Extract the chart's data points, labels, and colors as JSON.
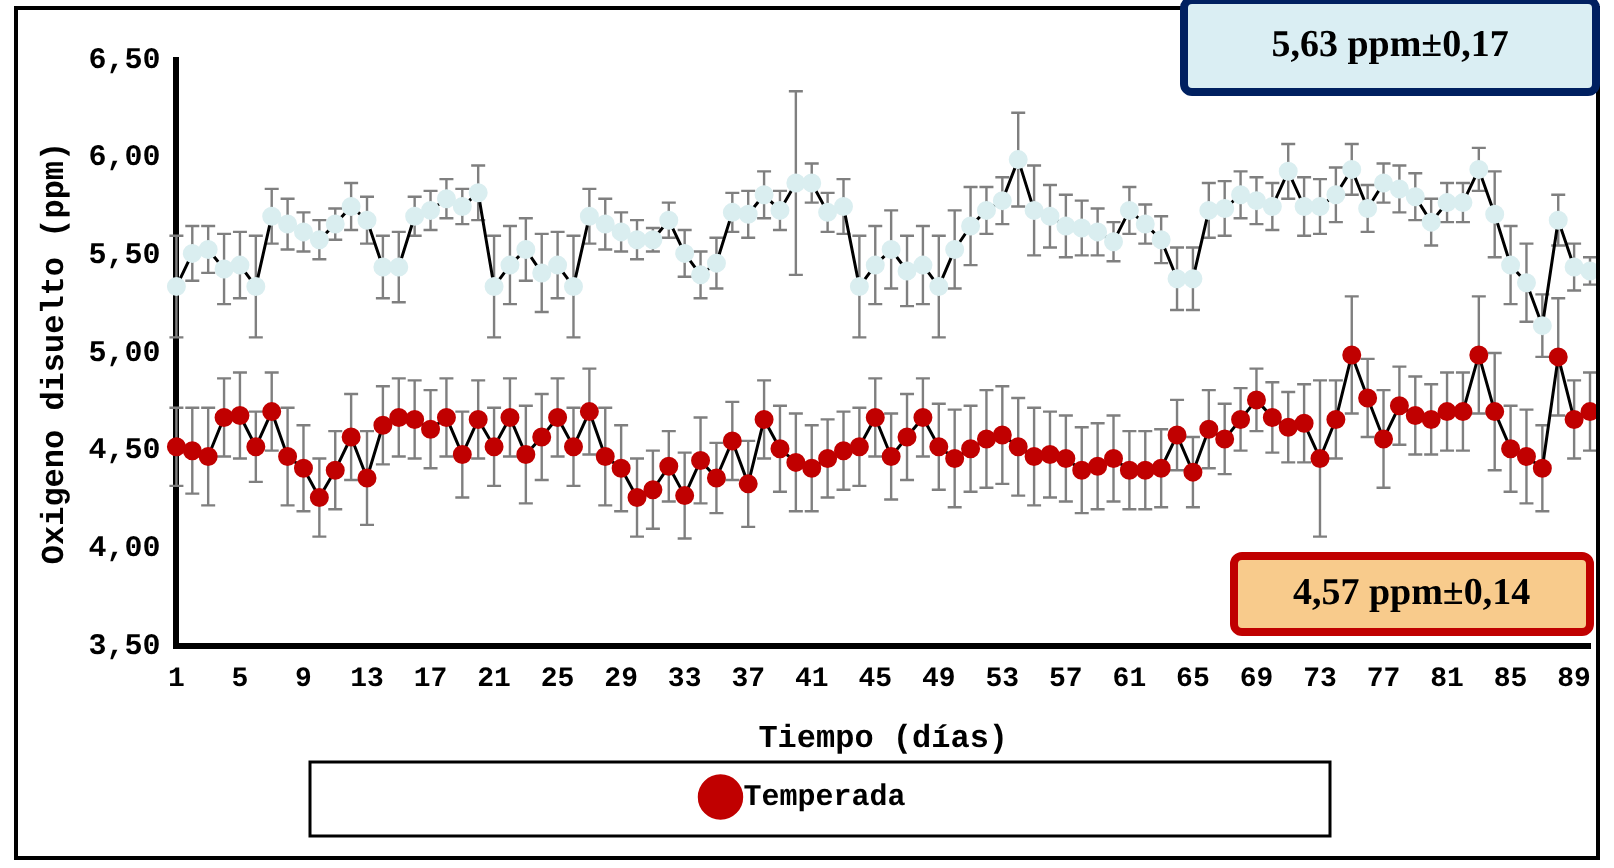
{
  "chart_data": {
    "type": "line",
    "xlabel": "Tiempo (días)",
    "ylabel": "Oxigeno disuelto (ppm)",
    "categories": [
      "1",
      null,
      null,
      null,
      "5",
      null,
      null,
      null,
      "9",
      null,
      null,
      null,
      "13",
      null,
      null,
      null,
      "17",
      null,
      null,
      null,
      "21",
      null,
      null,
      null,
      "25",
      null,
      null,
      null,
      "29",
      null,
      null,
      null,
      "33",
      null,
      null,
      null,
      "37",
      null,
      null,
      null,
      "41",
      null,
      null,
      null,
      "45",
      null,
      null,
      null,
      "49",
      null,
      null,
      null,
      "53",
      null,
      null,
      null,
      "57",
      null,
      null,
      null,
      "61",
      null,
      null,
      null,
      "65",
      null,
      null,
      null,
      "69",
      null,
      null,
      null,
      "73",
      null,
      null,
      null,
      "77",
      null,
      null,
      null,
      "81",
      null,
      null,
      null,
      "85",
      null,
      null,
      null,
      "89",
      null
    ],
    "series": [
      {
        "color": "#daeef0",
        "values": [
          5.34,
          5.51,
          5.53,
          5.43,
          5.45,
          5.34,
          5.7,
          5.66,
          5.62,
          5.58,
          5.66,
          5.75,
          5.68,
          5.44,
          5.44,
          5.7,
          5.73,
          5.79,
          5.75,
          5.82,
          5.34,
          5.45,
          5.53,
          5.41,
          5.45,
          5.34,
          5.7,
          5.66,
          5.62,
          5.58,
          5.58,
          5.68,
          5.51,
          5.4,
          5.46,
          5.72,
          5.71,
          5.81,
          5.73,
          5.87,
          5.87,
          5.72,
          5.75,
          5.34,
          5.45,
          5.53,
          5.42,
          5.45,
          5.34,
          5.53,
          5.65,
          5.73,
          5.78,
          5.99,
          5.73,
          5.7,
          5.65,
          5.64,
          5.62,
          5.57,
          5.73,
          5.66,
          5.58,
          5.38,
          5.38,
          5.73,
          5.74,
          5.81,
          5.78,
          5.75,
          5.93,
          5.75,
          5.75,
          5.81,
          5.94,
          5.74,
          5.87,
          5.84,
          5.8,
          5.67,
          5.77,
          5.77,
          5.94,
          5.71,
          5.45,
          5.36,
          5.14,
          5.68,
          5.44,
          5.42
        ],
        "errors": [
          0.26,
          0.14,
          0.12,
          0.18,
          0.17,
          0.26,
          0.14,
          0.13,
          0.1,
          0.1,
          0.08,
          0.12,
          0.12,
          0.16,
          0.18,
          0.1,
          0.1,
          0.1,
          0.09,
          0.14,
          0.26,
          0.2,
          0.16,
          0.2,
          0.17,
          0.26,
          0.14,
          0.13,
          0.1,
          0.1,
          0.06,
          0.09,
          0.12,
          0.12,
          0.13,
          0.1,
          0.12,
          0.12,
          0.1,
          0.47,
          0.1,
          0.1,
          0.14,
          0.26,
          0.2,
          0.2,
          0.18,
          0.2,
          0.26,
          0.2,
          0.2,
          0.12,
          0.12,
          0.24,
          0.23,
          0.16,
          0.16,
          0.14,
          0.12,
          0.1,
          0.12,
          0.1,
          0.12,
          0.16,
          0.16,
          0.14,
          0.14,
          0.12,
          0.12,
          0.12,
          0.14,
          0.15,
          0.14,
          0.14,
          0.13,
          0.12,
          0.1,
          0.12,
          0.12,
          0.12,
          0.1,
          0.1,
          0.11,
          0.22,
          0.2,
          0.2,
          0.16,
          0.13,
          0.12,
          0.07
        ]
      },
      {
        "name": "Temperada",
        "color": "#c00000",
        "values": [
          4.52,
          4.5,
          4.47,
          4.67,
          4.68,
          4.52,
          4.7,
          4.47,
          4.41,
          4.26,
          4.4,
          4.57,
          4.36,
          4.63,
          4.67,
          4.66,
          4.61,
          4.67,
          4.48,
          4.66,
          4.52,
          4.67,
          4.48,
          4.57,
          4.67,
          4.52,
          4.7,
          4.47,
          4.41,
          4.26,
          4.3,
          4.42,
          4.27,
          4.45,
          4.36,
          4.55,
          4.33,
          4.66,
          4.51,
          4.44,
          4.41,
          4.46,
          4.5,
          4.52,
          4.67,
          4.47,
          4.57,
          4.67,
          4.52,
          4.46,
          4.51,
          4.56,
          4.58,
          4.52,
          4.47,
          4.48,
          4.46,
          4.4,
          4.42,
          4.46,
          4.4,
          4.4,
          4.41,
          4.58,
          4.39,
          4.61,
          4.56,
          4.66,
          4.76,
          4.67,
          4.62,
          4.64,
          4.46,
          4.66,
          4.99,
          4.77,
          4.56,
          4.73,
          4.68,
          4.66,
          4.7,
          4.7,
          4.99,
          4.7,
          4.51,
          4.47,
          4.41,
          4.98,
          4.66,
          4.7
        ],
        "errors": [
          0.2,
          0.22,
          0.25,
          0.2,
          0.22,
          0.18,
          0.2,
          0.25,
          0.22,
          0.2,
          0.2,
          0.22,
          0.24,
          0.2,
          0.2,
          0.2,
          0.2,
          0.2,
          0.22,
          0.2,
          0.2,
          0.2,
          0.25,
          0.22,
          0.2,
          0.2,
          0.22,
          0.25,
          0.22,
          0.2,
          0.2,
          0.18,
          0.22,
          0.22,
          0.18,
          0.2,
          0.22,
          0.2,
          0.22,
          0.25,
          0.22,
          0.2,
          0.2,
          0.2,
          0.2,
          0.22,
          0.22,
          0.2,
          0.22,
          0.25,
          0.22,
          0.25,
          0.25,
          0.25,
          0.25,
          0.22,
          0.22,
          0.22,
          0.22,
          0.22,
          0.2,
          0.2,
          0.2,
          0.18,
          0.18,
          0.2,
          0.18,
          0.16,
          0.16,
          0.18,
          0.18,
          0.2,
          0.4,
          0.2,
          0.3,
          0.2,
          0.25,
          0.2,
          0.2,
          0.18,
          0.2,
          0.2,
          0.3,
          0.3,
          0.22,
          0.24,
          0.22,
          0.3,
          0.2,
          0.2
        ]
      }
    ],
    "ylim": [
      3.5,
      6.5
    ],
    "yticks": [
      {
        "value": 3.5,
        "label": "3,50"
      },
      {
        "value": 4,
        "label": "4,00"
      },
      {
        "value": 4.5,
        "label": "4,50"
      },
      {
        "value": 5,
        "label": "5,00"
      },
      {
        "value": 5.5,
        "label": "5,50"
      },
      {
        "value": 6,
        "label": "6,00"
      },
      {
        "value": 6.5,
        "label": "6,50"
      }
    ],
    "grid": false,
    "legend": "bottom",
    "marker": "circle",
    "annotations": [
      "5,63 ppm±0,17",
      "4,57 ppm±0,14"
    ]
  }
}
